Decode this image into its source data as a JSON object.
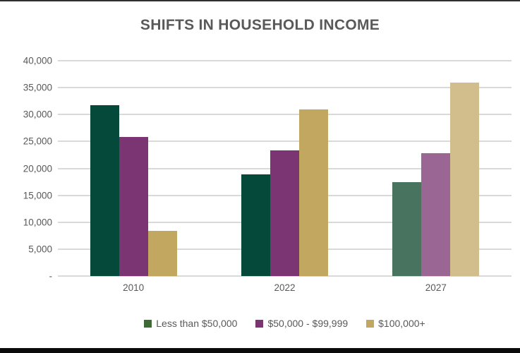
{
  "chart_data": {
    "type": "bar",
    "title": "SHIFTS IN HOUSEHOLD INCOME",
    "categories": [
      "2010",
      "2022",
      "2027"
    ],
    "ylim": [
      0,
      40000
    ],
    "grid": true,
    "legend_position": "bottom",
    "y_ticks": [
      {
        "label": "40,000",
        "value": 40000
      },
      {
        "label": "35,000",
        "value": 35000
      },
      {
        "label": "30,000",
        "value": 30000
      },
      {
        "label": "25,000",
        "value": 25000
      },
      {
        "label": "20,000",
        "value": 20000
      },
      {
        "label": "15,000",
        "value": 15000
      },
      {
        "label": "10,000",
        "value": 10000
      },
      {
        "label": "5,000",
        "value": 5000
      },
      {
        "label": "-",
        "value": 0
      }
    ],
    "series": [
      {
        "name": "Less than $50,000",
        "values": [
          31700,
          18900,
          17500
        ],
        "colors": [
          "#05493B",
          "#05493B",
          "#47735F"
        ],
        "legend_color": "#3E6A36"
      },
      {
        "name": "$50,000 - $99,999",
        "values": [
          25800,
          23400,
          22800
        ],
        "colors": [
          "#7B3573",
          "#7B3573",
          "#9A6694"
        ],
        "legend_color": "#7B3573"
      },
      {
        "name": "$100,000+",
        "values": [
          8400,
          31000,
          36000
        ],
        "colors": [
          "#C1A75F",
          "#C1A75F",
          "#D2BE8D"
        ],
        "legend_color": "#C1A75F"
      }
    ],
    "note_colors": {
      "gridline": "#D9D9D9",
      "axis_text": "#595959",
      "title_text": "#595959"
    }
  }
}
